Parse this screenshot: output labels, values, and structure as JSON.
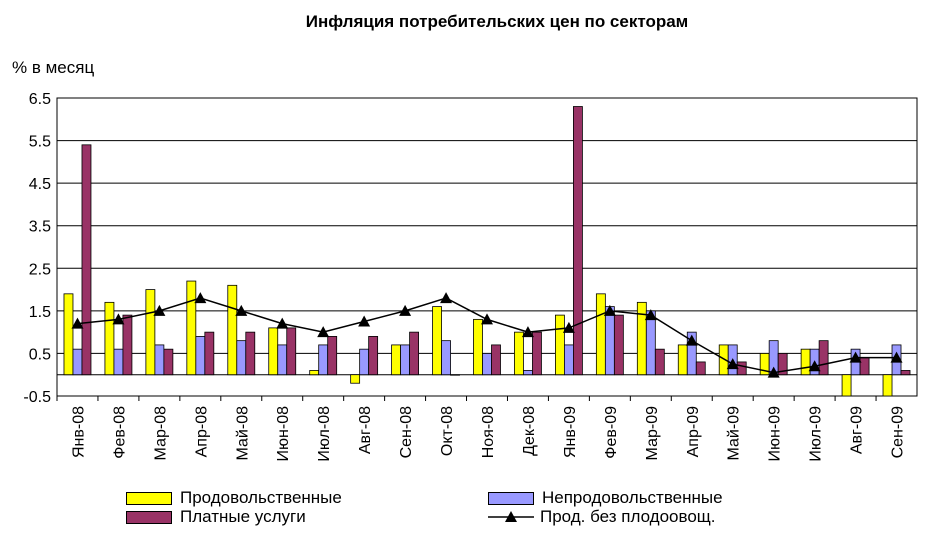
{
  "chart_data": {
    "type": "bar",
    "title": "Инфляция потребительских цен по секторам",
    "ylabel": "% в месяц",
    "xlabel": "",
    "ylim": [
      -0.5,
      6.5
    ],
    "yticks": [
      "6.5",
      "5.5",
      "4.5",
      "3.5",
      "2.5",
      "1.5",
      "0.5",
      "-0.5"
    ],
    "ytick_values": [
      6.5,
      5.5,
      4.5,
      3.5,
      2.5,
      1.5,
      0.5,
      -0.5
    ],
    "grid": true,
    "legend_position": "bottom",
    "categories": [
      "Янв-08",
      "Фев-08",
      "Мар-08",
      "Апр-08",
      "Май-08",
      "Июн-08",
      "Июл-08",
      "Авг-08",
      "Сен-08",
      "Окт-08",
      "Ноя-08",
      "Дек-08",
      "Янв-09",
      "Фев-09",
      "Мар-09",
      "Апр-09",
      "Май-09",
      "Июн-09",
      "Июл-09",
      "Авг-09",
      "Сен-09"
    ],
    "series": [
      {
        "name": "Продовольственные",
        "type": "bar",
        "color": "#ffff00",
        "values": [
          1.9,
          1.7,
          2.0,
          2.2,
          2.1,
          1.1,
          0.1,
          -0.2,
          0.7,
          1.6,
          1.3,
          1.0,
          1.4,
          1.9,
          1.7,
          0.7,
          0.7,
          0.5,
          0.6,
          -0.5,
          -0.5
        ]
      },
      {
        "name": "Непродовольственные",
        "type": "bar",
        "color": "#9999ff",
        "values": [
          0.6,
          0.6,
          0.7,
          0.9,
          0.8,
          0.7,
          0.7,
          0.6,
          0.7,
          0.8,
          0.5,
          0.1,
          0.7,
          1.6,
          1.5,
          1.0,
          0.7,
          0.8,
          0.6,
          0.6,
          0.7
        ]
      },
      {
        "name": "Платные услуги",
        "type": "bar",
        "color": "#993366",
        "values": [
          5.4,
          1.4,
          0.6,
          1.0,
          1.0,
          1.1,
          0.9,
          0.9,
          1.0,
          0.0,
          0.7,
          1.0,
          6.3,
          1.4,
          0.6,
          0.3,
          0.3,
          0.5,
          0.8,
          0.4,
          0.1
        ]
      },
      {
        "name": "Прод. без плодоовощ.",
        "type": "line",
        "color": "#000000",
        "values": [
          1.2,
          1.3,
          1.5,
          1.8,
          1.5,
          1.2,
          1.0,
          1.25,
          1.5,
          1.8,
          1.3,
          1.0,
          1.1,
          1.5,
          1.4,
          0.8,
          0.25,
          0.05,
          0.2,
          0.4,
          0.4
        ]
      }
    ]
  }
}
